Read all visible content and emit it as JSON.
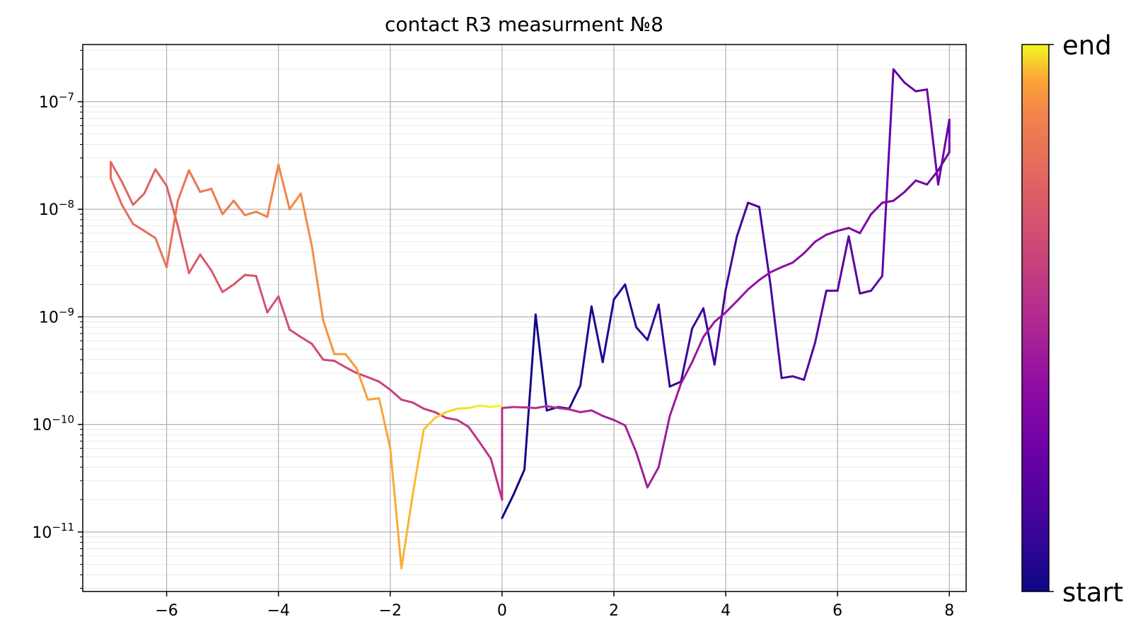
{
  "chart_data": {
    "type": "line",
    "title": "contact R3 measurment №8",
    "xlabel": "",
    "ylabel": "",
    "xlim": [
      -7.5,
      8.3
    ],
    "ylim": [
      2.8e-12,
      3.4e-07
    ],
    "yscale": "log",
    "grid": true,
    "x_ticks": [
      -6,
      -4,
      -2,
      0,
      2,
      4,
      6,
      8
    ],
    "x_tick_labels": [
      "−6",
      "−4",
      "−2",
      "0",
      "2",
      "4",
      "6",
      "8"
    ],
    "y_ticks": [
      1e-11,
      1e-10,
      1e-09,
      1e-08,
      1e-07
    ],
    "y_tick_labels": [
      {
        "base": "10",
        "exp": "−11"
      },
      {
        "base": "10",
        "exp": "−10"
      },
      {
        "base": "10",
        "exp": "−9"
      },
      {
        "base": "10",
        "exp": "−8"
      },
      {
        "base": "10",
        "exp": "−7"
      }
    ],
    "colormap": "plasma",
    "colorbar": {
      "min_label": "start",
      "max_label": "end"
    },
    "x": [
      0,
      0.2,
      0.4,
      0.6,
      0.8,
      1.0,
      1.2,
      1.4,
      1.6,
      1.8,
      2.0,
      2.2,
      2.4,
      2.6,
      2.8,
      3.0,
      3.2,
      3.4,
      3.6,
      3.8,
      4.0,
      4.2,
      4.4,
      4.6,
      4.8,
      5.0,
      5.2,
      5.4,
      5.6,
      5.8,
      6.0,
      6.2,
      6.4,
      6.6,
      6.8,
      7.0,
      7.2,
      7.4,
      7.6,
      7.8,
      8.0,
      8.0,
      7.8,
      7.6,
      7.4,
      7.2,
      7.0,
      6.8,
      6.6,
      6.4,
      6.2,
      6.0,
      5.8,
      5.6,
      5.4,
      5.2,
      5.0,
      4.8,
      4.6,
      4.4,
      4.2,
      4.0,
      3.8,
      3.6,
      3.4,
      3.2,
      3.0,
      2.8,
      2.6,
      2.4,
      2.2,
      2.0,
      1.8,
      1.6,
      1.4,
      1.2,
      1.0,
      0.8,
      0.6,
      0.4,
      0.2,
      0.0,
      0.0,
      -0.2,
      -0.4,
      -0.6,
      -0.8,
      -1.0,
      -1.2,
      -1.4,
      -1.6,
      -1.8,
      -2.0,
      -2.2,
      -2.4,
      -2.6,
      -2.8,
      -3.0,
      -3.2,
      -3.4,
      -3.6,
      -3.8,
      -4.0,
      -4.2,
      -4.4,
      -4.6,
      -4.8,
      -5.0,
      -5.2,
      -5.4,
      -5.6,
      -5.8,
      -6.0,
      -6.2,
      -6.4,
      -6.6,
      -6.8,
      -7.0,
      -7.0,
      -6.8,
      -6.6,
      -6.4,
      -6.2,
      -6.0,
      -5.8,
      -5.6,
      -5.4,
      -5.2,
      -5.0,
      -4.8,
      -4.6,
      -4.4,
      -4.2,
      -4.0,
      -3.8,
      -3.6,
      -3.4,
      -3.2,
      -3.0,
      -2.8,
      -2.6,
      -2.4,
      -2.2,
      -2.0,
      -1.8,
      -1.6,
      -1.4,
      -1.2,
      -1.0,
      -0.8,
      -0.6,
      -0.4,
      -0.2,
      0.0
    ],
    "y": [
      1.35e-11,
      2.2e-11,
      3.8e-11,
      1.05e-09,
      1.35e-10,
      1.45e-10,
      1.4e-10,
      2.3e-10,
      1.25e-09,
      3.8e-10,
      1.45e-09,
      2e-09,
      8e-10,
      6.1e-10,
      1.3e-09,
      2.25e-10,
      2.5e-10,
      7.8e-10,
      1.2e-09,
      3.6e-10,
      1.8e-09,
      5.6e-09,
      1.15e-08,
      1.05e-08,
      2e-09,
      2.7e-10,
      2.8e-10,
      2.6e-10,
      5.8e-10,
      1.75e-09,
      1.75e-09,
      5.6e-09,
      1.65e-09,
      1.75e-09,
      2.4e-09,
      2e-07,
      1.5e-07,
      1.25e-07,
      1.3e-07,
      1.7e-08,
      6.8e-08,
      3.4e-08,
      2.3e-08,
      1.7e-08,
      1.85e-08,
      1.45e-08,
      1.2e-08,
      1.15e-08,
      9e-09,
      6e-09,
      6.7e-09,
      6.3e-09,
      5.8e-09,
      5e-09,
      3.9e-09,
      3.2e-09,
      2.9e-09,
      2.6e-09,
      2.2e-09,
      1.8e-09,
      1.4e-09,
      1.1e-09,
      9e-10,
      6.5e-10,
      3.8e-10,
      2.4e-10,
      1.2e-10,
      4e-11,
      2.6e-11,
      5.5e-11,
      9.8e-11,
      1.1e-10,
      1.2e-10,
      1.35e-10,
      1.3e-10,
      1.38e-10,
      1.42e-10,
      1.48e-10,
      1.42e-10,
      1.44e-10,
      1.45e-10,
      1.42e-10,
      2e-11,
      4.8e-11,
      6.8e-11,
      9.5e-11,
      1.1e-10,
      1.15e-10,
      1.3e-10,
      1.4e-10,
      1.6e-10,
      1.7e-10,
      2.1e-10,
      2.5e-10,
      2.75e-10,
      3e-10,
      3.4e-10,
      3.9e-10,
      4e-10,
      5.6e-10,
      6.5e-10,
      7.6e-10,
      1.55e-09,
      1.1e-09,
      2.4e-09,
      2.45e-09,
      2e-09,
      1.7e-09,
      2.7e-09,
      3.8e-09,
      2.55e-09,
      7e-09,
      1.65e-08,
      2.35e-08,
      1.4e-08,
      1.1e-08,
      1.8e-08,
      2.75e-08,
      1.95e-08,
      1.1e-08,
      7.3e-09,
      6.3e-09,
      5.4e-09,
      2.9e-09,
      1.2e-08,
      2.3e-08,
      1.45e-08,
      1.55e-08,
      9e-09,
      1.2e-08,
      8.8e-09,
      9.5e-09,
      8.5e-09,
      2.6e-08,
      1e-08,
      1.4e-08,
      4.5e-09,
      9.3e-10,
      4.5e-10,
      4.5e-10,
      3.3e-10,
      1.7e-10,
      1.75e-10,
      6e-11,
      4.6e-12,
      2.2e-11,
      9e-11,
      1.15e-10,
      1.3e-10,
      1.4e-10,
      1.42e-10,
      1.5e-10,
      1.45e-10,
      1.5e-10
    ]
  }
}
